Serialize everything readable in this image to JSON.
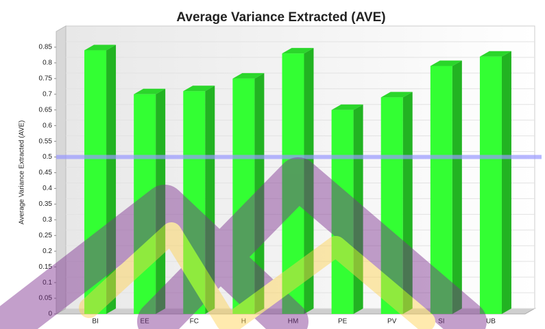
{
  "chart_data": {
    "type": "bar3d",
    "title": "Average Variance Extracted (AVE)",
    "y_label": "Average Variance Extracted (AVE)",
    "categories": [
      "BI",
      "EE",
      "FC",
      "H",
      "HM",
      "PE",
      "PV",
      "SI",
      "UB"
    ],
    "values": [
      0.84,
      0.7,
      0.71,
      0.75,
      0.83,
      0.65,
      0.69,
      0.79,
      0.82
    ],
    "color": "#33ff33",
    "threshold": 0.5,
    "threshold_color": "#9999ff",
    "ylim": [
      0,
      0.9
    ],
    "yticks": [
      0,
      0.05,
      0.1,
      0.15,
      0.2,
      0.25,
      0.3,
      0.35,
      0.4,
      0.45,
      0.5,
      0.55,
      0.6,
      0.65,
      0.7,
      0.75,
      0.8,
      0.85
    ],
    "grid": true
  }
}
